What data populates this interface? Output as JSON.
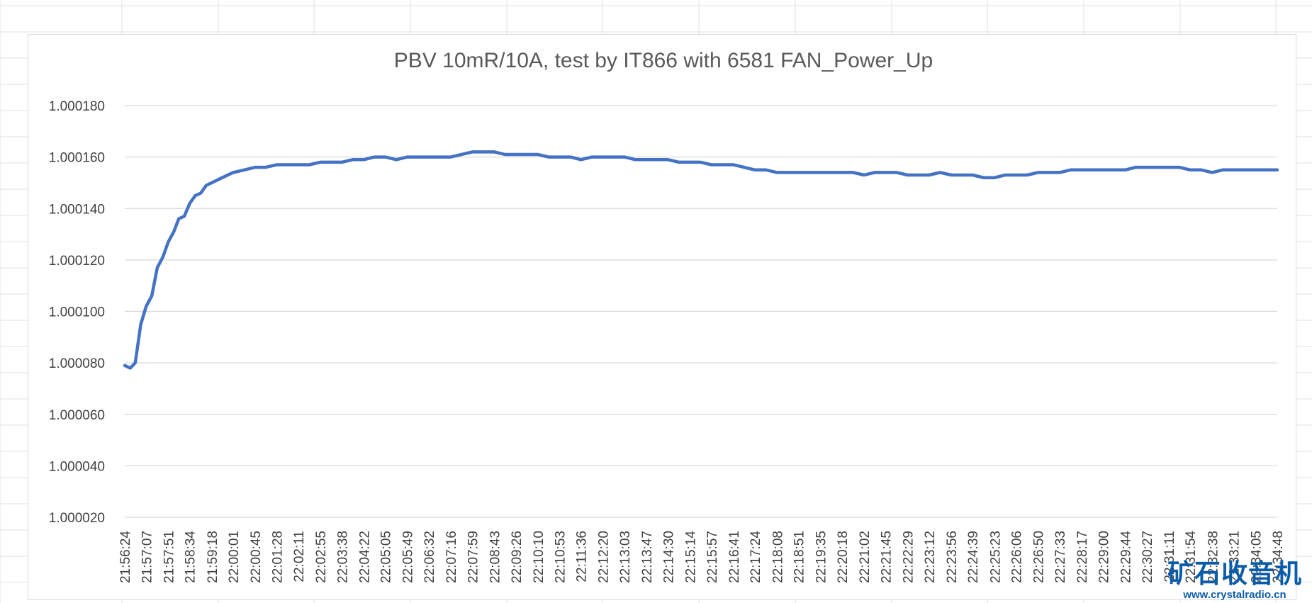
{
  "chart_data": {
    "type": "line",
    "title": "PBV 10mR/10A, test by IT866 with 6581 FAN_Power_Up",
    "xlabel": "",
    "ylabel": "",
    "ylim": [
      1.00002,
      1.00018
    ],
    "yticks": [
      "1.000180",
      "1.000160",
      "1.000140",
      "1.000120",
      "1.000100",
      "1.000080",
      "1.000060",
      "1.000040",
      "1.000020"
    ],
    "ytick_values": [
      1.00018,
      1.00016,
      1.00014,
      1.00012,
      1.0001,
      1.00008,
      1.00006,
      1.00004,
      1.00002
    ],
    "xticks": [
      "21:56:24",
      "21:57:07",
      "21:57:51",
      "21:58:34",
      "21:59:18",
      "22:00:01",
      "22:00:45",
      "22:01:28",
      "22:02:11",
      "22:02:55",
      "22:03:38",
      "22:04:22",
      "22:05:05",
      "22:05:49",
      "22:06:32",
      "22:07:16",
      "22:07:59",
      "22:08:43",
      "22:09:26",
      "22:10:10",
      "22:10:53",
      "22:11:36",
      "22:12:20",
      "22:13:03",
      "22:13:47",
      "22:14:30",
      "22:15:14",
      "22:15:57",
      "22:16:41",
      "22:17:24",
      "22:18:08",
      "22:18:51",
      "22:19:35",
      "22:20:18",
      "22:21:02",
      "22:21:45",
      "22:22:29",
      "22:23:12",
      "22:23:56",
      "22:24:39",
      "22:25:23",
      "22:26:06",
      "22:26:50",
      "22:27:33",
      "22:28:17",
      "22:29:00",
      "22:29:44",
      "22:30:27",
      "22:31:11",
      "22:31:54",
      "22:32:38",
      "22:33:21",
      "22:34:05",
      "22:34:48"
    ],
    "grid": true,
    "legend": "none",
    "series": [
      {
        "color": "#4472c4",
        "x": [
          "21:56:24",
          "21:56:35",
          "21:56:45",
          "21:56:56",
          "21:57:07",
          "21:57:18",
          "21:57:29",
          "21:57:40",
          "21:57:51",
          "21:58:02",
          "21:58:12",
          "21:58:23",
          "21:58:34",
          "21:58:45",
          "21:58:56",
          "21:59:07",
          "21:59:18",
          "21:59:39",
          "22:00:01",
          "22:00:23",
          "22:00:45",
          "22:01:06",
          "22:01:28",
          "22:01:50",
          "22:02:11",
          "22:02:33",
          "22:02:55",
          "22:03:17",
          "22:03:38",
          "22:04:00",
          "22:04:22",
          "22:04:43",
          "22:05:05",
          "22:05:27",
          "22:05:49",
          "22:06:10",
          "22:06:32",
          "22:06:54",
          "22:07:16",
          "22:07:37",
          "22:07:59",
          "22:08:21",
          "22:08:43",
          "22:09:04",
          "22:09:26",
          "22:09:48",
          "22:10:10",
          "22:10:31",
          "22:10:53",
          "22:11:15",
          "22:11:36",
          "22:11:58",
          "22:12:20",
          "22:12:42",
          "22:13:03",
          "22:13:25",
          "22:13:47",
          "22:14:08",
          "22:14:30",
          "22:14:52",
          "22:15:14",
          "22:15:35",
          "22:15:57",
          "22:16:19",
          "22:16:41",
          "22:17:02",
          "22:17:24",
          "22:17:46",
          "22:18:08",
          "22:18:29",
          "22:18:51",
          "22:19:13",
          "22:19:35",
          "22:19:56",
          "22:20:18",
          "22:20:40",
          "22:21:02",
          "22:21:23",
          "22:21:45",
          "22:22:07",
          "22:22:29",
          "22:22:50",
          "22:23:12",
          "22:23:34",
          "22:23:56",
          "22:24:17",
          "22:24:39",
          "22:25:01",
          "22:25:23",
          "22:25:44",
          "22:26:06",
          "22:26:28",
          "22:26:50",
          "22:27:11",
          "22:27:33",
          "22:27:55",
          "22:28:17",
          "22:28:38",
          "22:29:00",
          "22:29:22",
          "22:29:44",
          "22:30:05",
          "22:30:27",
          "22:30:49",
          "22:31:11",
          "22:31:32",
          "22:31:54",
          "22:32:16",
          "22:32:38",
          "22:32:59",
          "22:33:21",
          "22:33:43",
          "22:34:05",
          "22:34:26",
          "22:34:48"
        ],
        "values": [
          1.000079,
          1.000078,
          1.00008,
          1.000095,
          1.000102,
          1.000106,
          1.000117,
          1.000121,
          1.000127,
          1.000131,
          1.000136,
          1.000137,
          1.000142,
          1.000145,
          1.000146,
          1.000149,
          1.00015,
          1.000152,
          1.000154,
          1.000155,
          1.000156,
          1.000156,
          1.000157,
          1.000157,
          1.000157,
          1.000157,
          1.000158,
          1.000158,
          1.000158,
          1.000159,
          1.000159,
          1.00016,
          1.00016,
          1.000159,
          1.00016,
          1.00016,
          1.00016,
          1.00016,
          1.00016,
          1.000161,
          1.000162,
          1.000162,
          1.000162,
          1.000161,
          1.000161,
          1.000161,
          1.000161,
          1.00016,
          1.00016,
          1.00016,
          1.000159,
          1.00016,
          1.00016,
          1.00016,
          1.00016,
          1.000159,
          1.000159,
          1.000159,
          1.000159,
          1.000158,
          1.000158,
          1.000158,
          1.000157,
          1.000157,
          1.000157,
          1.000156,
          1.000155,
          1.000155,
          1.000154,
          1.000154,
          1.000154,
          1.000154,
          1.000154,
          1.000154,
          1.000154,
          1.000154,
          1.000153,
          1.000154,
          1.000154,
          1.000154,
          1.000153,
          1.000153,
          1.000153,
          1.000154,
          1.000153,
          1.000153,
          1.000153,
          1.000152,
          1.000152,
          1.000153,
          1.000153,
          1.000153,
          1.000154,
          1.000154,
          1.000154,
          1.000155,
          1.000155,
          1.000155,
          1.000155,
          1.000155,
          1.000155,
          1.000156,
          1.000156,
          1.000156,
          1.000156,
          1.000156,
          1.000155,
          1.000155,
          1.000154,
          1.000155,
          1.000155,
          1.000155,
          1.000155,
          1.000155,
          1.000155
        ]
      }
    ]
  },
  "watermark": {
    "logo_text": "矿石收音机",
    "url": "www.crystalradio.cn",
    "color": "#0b5ca8"
  }
}
